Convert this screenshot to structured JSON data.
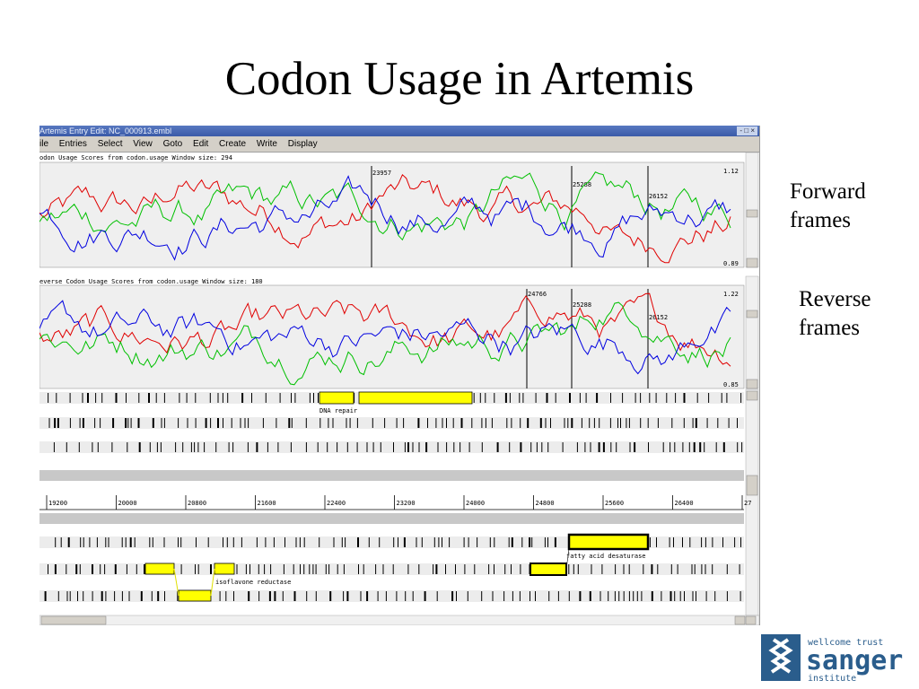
{
  "title": "Codon Usage in Artemis",
  "labels": {
    "forward": [
      "Forward",
      "frames"
    ],
    "reverse": [
      "Reverse",
      "frames"
    ]
  },
  "window": {
    "title": "Artemis Entry Edit: NC_000913.embl",
    "controls": "- □ ×",
    "menu": [
      "ile",
      "Entries",
      "Select",
      "View",
      "Goto",
      "Edit",
      "Create",
      "Write",
      "Display"
    ]
  },
  "forward_plot": {
    "header": "odon Usage Scores from codon.usage  Window size: 294",
    "max": "1.12",
    "min": "0.89",
    "markers": [
      "23957",
      "25288",
      "26152"
    ]
  },
  "reverse_plot": {
    "header": "everse Codon Usage Scores from codon.usage  Window size: 180",
    "max": "1.22",
    "min": "0.85",
    "markers": [
      "24766",
      "25288",
      "26152"
    ]
  },
  "features": {
    "dna_repair": "DNA repair",
    "fatty_acid": "fatty acid desaturase",
    "isoflavone": "isoflavone reductase"
  },
  "ruler": [
    "19200",
    "20000",
    "20800",
    "21600",
    "22400",
    "23200",
    "24000",
    "24800",
    "25600",
    "26400",
    "27"
  ],
  "logo": {
    "line1": "wellcome trust",
    "line2": "sanger",
    "line3": "institute"
  },
  "colors": {
    "red": "#e00000",
    "green": "#00c000",
    "blue": "#0000e0",
    "feature_yellow": "#ffff00",
    "logo_blue": "#2a5d8c"
  }
}
